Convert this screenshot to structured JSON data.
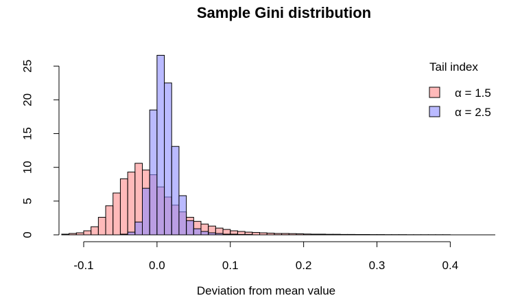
{
  "chart_data": {
    "type": "bar",
    "title": "Sample Gini distribution",
    "xlabel": "Deviation from mean value",
    "ylabel": "",
    "xlim": [
      -0.125,
      0.455
    ],
    "ylim": [
      0,
      27
    ],
    "xticks": [
      -0.1,
      0.0,
      0.1,
      0.2,
      0.3,
      0.4
    ],
    "xtick_labels": [
      "-0.1",
      "0.0",
      "0.1",
      "0.2",
      "0.3",
      "0.4"
    ],
    "yticks": [
      0,
      5,
      10,
      15,
      20,
      25
    ],
    "ytick_labels": [
      "0",
      "5",
      "10",
      "15",
      "20",
      "25"
    ],
    "bin_width": 0.01,
    "bins_start": [
      -0.13,
      -0.12,
      -0.11,
      -0.1,
      -0.09,
      -0.08,
      -0.07,
      -0.06,
      -0.05,
      -0.04,
      -0.03,
      -0.02,
      -0.01,
      0.0,
      0.01,
      0.02,
      0.03,
      0.04,
      0.05,
      0.06,
      0.07,
      0.08,
      0.09,
      0.1,
      0.11,
      0.12,
      0.13,
      0.14,
      0.15,
      0.16,
      0.17,
      0.18,
      0.19,
      0.2,
      0.21,
      0.22,
      0.23,
      0.24,
      0.25,
      0.26,
      0.27,
      0.28,
      0.29,
      0.3,
      0.31,
      0.32,
      0.33,
      0.34,
      0.35,
      0.36,
      0.37,
      0.38,
      0.39
    ],
    "series": [
      {
        "name": "α = 1.5",
        "color": "#FF8C8C",
        "values": [
          0.1,
          0.2,
          0.3,
          0.6,
          1.2,
          2.6,
          4.3,
          6.2,
          8.3,
          9.3,
          10.6,
          9.6,
          8.9,
          7.1,
          5.6,
          4.4,
          3.4,
          2.6,
          2.0,
          1.6,
          1.3,
          1.0,
          0.8,
          0.6,
          0.5,
          0.4,
          0.35,
          0.3,
          0.25,
          0.2,
          0.2,
          0.18,
          0.15,
          0.12,
          0.1,
          0.1,
          0.08,
          0.08,
          0.06,
          0.06,
          0.05,
          0.05,
          0.04,
          0.04,
          0.03,
          0.03,
          0.03,
          0.02,
          0.02,
          0.02,
          0.02,
          0.02,
          0.02
        ]
      },
      {
        "name": "α = 2.5",
        "color": "#8C8CFF",
        "values": [
          0,
          0,
          0,
          0,
          0,
          0,
          0,
          0,
          0.1,
          0.4,
          1.9,
          6.9,
          18.5,
          26.6,
          22.5,
          13.1,
          5.8,
          2.1,
          0.9,
          0.5,
          0.3,
          0.2,
          0.1,
          0.1,
          0.05,
          0.05,
          0,
          0,
          0,
          0,
          0,
          0,
          0,
          0,
          0,
          0,
          0,
          0,
          0,
          0,
          0,
          0,
          0,
          0,
          0,
          0,
          0,
          0,
          0,
          0,
          0,
          0,
          0
        ]
      }
    ],
    "legend": {
      "title": "Tail index",
      "placement": "top-right",
      "entries": [
        "α = 1.5",
        "α = 2.5"
      ]
    }
  }
}
